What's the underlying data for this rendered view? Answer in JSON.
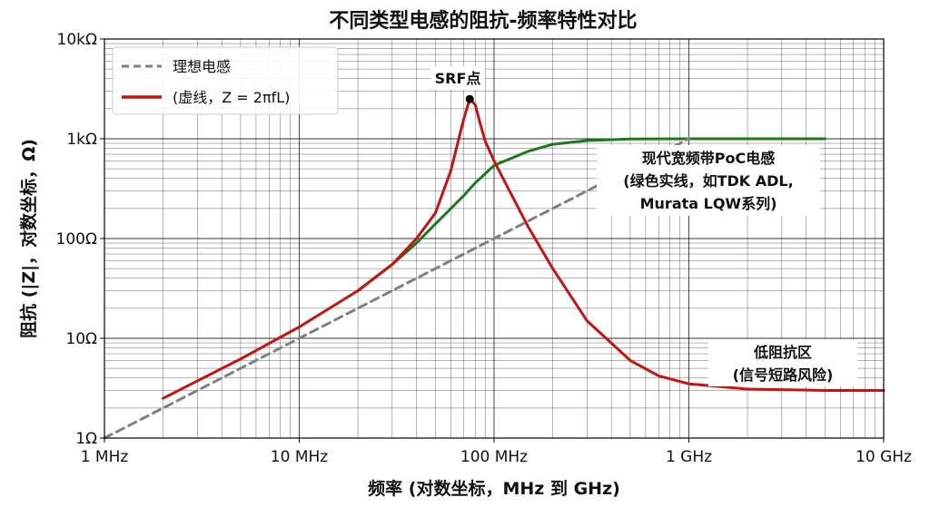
{
  "chart_data": {
    "type": "line",
    "title": "不同类型电感的阻抗-频率特性对比",
    "xlabel": "频率 (对数坐标，MHz 到 GHz)",
    "ylabel": "阻抗 (|Z|，对数坐标，Ω)",
    "x_scale": "log",
    "y_scale": "log",
    "xlim_mhz": [
      1,
      10000
    ],
    "ylim_ohm": [
      1,
      10000
    ],
    "x_ticks": [
      {
        "value": 1,
        "label": "1 MHz"
      },
      {
        "value": 10,
        "label": "10 MHz"
      },
      {
        "value": 100,
        "label": "100 MHz"
      },
      {
        "value": 1000,
        "label": "1 GHz"
      },
      {
        "value": 10000,
        "label": "10 GHz"
      }
    ],
    "y_ticks": [
      {
        "value": 1,
        "label": "1Ω"
      },
      {
        "value": 10,
        "label": "10Ω"
      },
      {
        "value": 100,
        "label": "100Ω"
      },
      {
        "value": 1000,
        "label": "1kΩ"
      },
      {
        "value": 10000,
        "label": "10kΩ"
      }
    ],
    "grid": "major and minor",
    "legend_position": "top-left",
    "series": [
      {
        "name": "理想电感",
        "style": "dashed",
        "color": "#808080",
        "x": [
          1,
          10,
          100,
          1000
        ],
        "y": [
          1,
          10,
          100,
          1000
        ]
      },
      {
        "name": "(虚线，Z = 2πfL)",
        "style": "solid",
        "color": "#cc1111",
        "x": [
          2,
          5,
          10,
          20,
          30,
          40,
          50,
          60,
          65,
          70,
          75,
          80,
          85,
          90,
          100,
          120,
          150,
          200,
          300,
          500,
          700,
          1000,
          2000,
          5000,
          10000
        ],
        "y": [
          2.5,
          6.2,
          13,
          30,
          55,
          100,
          180,
          480,
          900,
          1600,
          2500,
          2200,
          1400,
          950,
          600,
          300,
          130,
          50,
          15,
          6,
          4.2,
          3.5,
          3.1,
          3.0,
          3.0
        ]
      },
      {
        "name": "现代宽频带PoC电感",
        "style": "solid",
        "color": "#1a7a1a",
        "x": [
          20,
          30,
          40,
          50,
          60,
          70,
          80,
          100,
          150,
          200,
          300,
          500,
          1000,
          2000,
          5000
        ],
        "y": [
          30,
          55,
          90,
          140,
          200,
          270,
          360,
          540,
          750,
          880,
          960,
          995,
          1000,
          1000,
          1000
        ]
      }
    ],
    "annotations": [
      {
        "text": "SRF点",
        "x": 75,
        "y": 2500
      },
      {
        "lines": [
          "现代宽频带PoC电感",
          "(绿色实线，如TDK ADL,",
          "Murata LQW系列)"
        ]
      },
      {
        "lines": [
          "低阻抗区",
          "(信号短路风险)"
        ]
      }
    ]
  }
}
